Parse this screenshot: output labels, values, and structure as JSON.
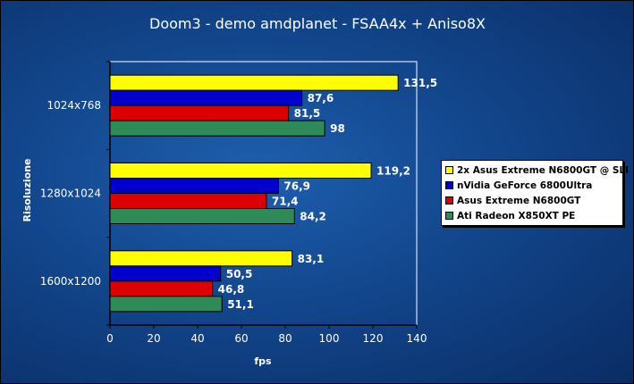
{
  "chart_data": {
    "type": "bar",
    "orientation": "horizontal",
    "title": "Doom3 - demo amdplanet - FSAA4x + Aniso8X",
    "xlabel": "fps",
    "ylabel": "Risoluzione",
    "xlim": [
      0,
      140
    ],
    "xticks": [
      "0",
      "20",
      "40",
      "60",
      "80",
      "100",
      "120",
      "140"
    ],
    "categories": [
      "1024x768",
      "1280x1024",
      "1600x1200"
    ],
    "series": [
      {
        "name": "2x Asus Extreme N6800GT @ SLI",
        "color": "#ffff00",
        "values": [
          131.5,
          119.2,
          83.1
        ],
        "labels": [
          "131,5",
          "119,2",
          "83,1"
        ]
      },
      {
        "name": "nVidia GeForce 6800Ultra",
        "color": "#0000cc",
        "values": [
          87.6,
          76.9,
          50.5
        ],
        "labels": [
          "87,6",
          "76,9",
          "50,5"
        ]
      },
      {
        "name": "Asus Extreme N6800GT",
        "color": "#dd0000",
        "values": [
          81.5,
          71.4,
          46.8
        ],
        "labels": [
          "81,5",
          "71,4",
          "46,8"
        ]
      },
      {
        "name": "Ati Radeon X850XT PE",
        "color": "#2e8b57",
        "values": [
          98,
          84.2,
          51.1
        ],
        "labels": [
          "98",
          "84,2",
          "51,1"
        ]
      }
    ],
    "legend": "right",
    "grid": false
  }
}
